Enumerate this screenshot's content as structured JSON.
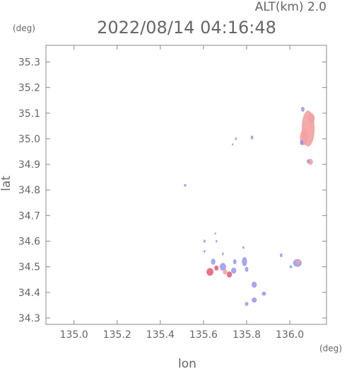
{
  "header": {
    "altitude": "ALT(km) 2.0",
    "timestamp": "2022/08/14 04:16:48"
  },
  "chart_data": {
    "type": "scatter",
    "xlabel": "lon",
    "ylabel": "lat",
    "x_unit": "(deg)",
    "y_unit": "(deg)",
    "xlim": [
      134.87,
      136.17
    ],
    "ylim": [
      34.275,
      35.365
    ],
    "xticks": [
      "135.0",
      "135.2",
      "135.4",
      "135.6",
      "135.8",
      "136.0"
    ],
    "yticks": [
      "34.3",
      "34.4",
      "34.5",
      "34.6",
      "34.7",
      "34.8",
      "34.9",
      "35.0",
      "35.1",
      "35.2",
      "35.3"
    ],
    "grid": false,
    "colors": {
      "positive": "#f4a0a0",
      "positive_strong": "#e8607a",
      "negative": "#8888ee",
      "axis": "#888888"
    },
    "series": [
      {
        "values": [
          {
            "lon": 136.085,
            "lat": 35.04,
            "rx": 0.03,
            "ry": 0.07,
            "c": "positive"
          },
          {
            "lon": 136.065,
            "lat": 35.005,
            "rx": 0.018,
            "ry": 0.03,
            "c": "positive"
          },
          {
            "lon": 136.1,
            "lat": 35.08,
            "rx": 0.015,
            "ry": 0.02,
            "c": "positive"
          },
          {
            "lon": 136.06,
            "lat": 35.115,
            "rx": 0.008,
            "ry": 0.01,
            "c": "negative"
          },
          {
            "lon": 136.055,
            "lat": 34.985,
            "rx": 0.008,
            "ry": 0.01,
            "c": "negative"
          },
          {
            "lon": 136.095,
            "lat": 34.91,
            "rx": 0.012,
            "ry": 0.012,
            "c": "positive"
          },
          {
            "lon": 136.085,
            "lat": 34.912,
            "rx": 0.006,
            "ry": 0.008,
            "c": "negative"
          },
          {
            "lon": 135.825,
            "lat": 35.005,
            "rx": 0.006,
            "ry": 0.008,
            "c": "negative"
          },
          {
            "lon": 135.75,
            "lat": 35.0,
            "rx": 0.004,
            "ry": 0.006,
            "c": "negative"
          },
          {
            "lon": 135.735,
            "lat": 34.978,
            "rx": 0.004,
            "ry": 0.004,
            "c": "negative"
          },
          {
            "lon": 135.515,
            "lat": 34.818,
            "rx": 0.006,
            "ry": 0.005,
            "c": "negative"
          },
          {
            "lon": 135.605,
            "lat": 34.6,
            "rx": 0.005,
            "ry": 0.006,
            "c": "negative"
          },
          {
            "lon": 135.655,
            "lat": 34.63,
            "rx": 0.004,
            "ry": 0.004,
            "c": "negative"
          },
          {
            "lon": 135.66,
            "lat": 34.6,
            "rx": 0.004,
            "ry": 0.005,
            "c": "negative"
          },
          {
            "lon": 135.605,
            "lat": 34.56,
            "rx": 0.004,
            "ry": 0.004,
            "c": "positive_strong"
          },
          {
            "lon": 135.645,
            "lat": 34.52,
            "rx": 0.01,
            "ry": 0.012,
            "c": "negative"
          },
          {
            "lon": 135.63,
            "lat": 34.48,
            "rx": 0.016,
            "ry": 0.015,
            "c": "positive_strong"
          },
          {
            "lon": 135.66,
            "lat": 34.495,
            "rx": 0.01,
            "ry": 0.01,
            "c": "positive_strong"
          },
          {
            "lon": 135.69,
            "lat": 34.5,
            "rx": 0.015,
            "ry": 0.015,
            "c": "negative"
          },
          {
            "lon": 135.7,
            "lat": 34.48,
            "rx": 0.01,
            "ry": 0.01,
            "c": "positive"
          },
          {
            "lon": 135.72,
            "lat": 34.47,
            "rx": 0.012,
            "ry": 0.012,
            "c": "positive_strong"
          },
          {
            "lon": 135.74,
            "lat": 34.485,
            "rx": 0.012,
            "ry": 0.012,
            "c": "negative"
          },
          {
            "lon": 135.745,
            "lat": 34.52,
            "rx": 0.008,
            "ry": 0.01,
            "c": "negative"
          },
          {
            "lon": 135.79,
            "lat": 34.52,
            "rx": 0.012,
            "ry": 0.018,
            "c": "negative"
          },
          {
            "lon": 135.8,
            "lat": 34.49,
            "rx": 0.008,
            "ry": 0.01,
            "c": "negative"
          },
          {
            "lon": 135.835,
            "lat": 34.43,
            "rx": 0.012,
            "ry": 0.012,
            "c": "negative"
          },
          {
            "lon": 135.88,
            "lat": 34.395,
            "rx": 0.01,
            "ry": 0.008,
            "c": "negative"
          },
          {
            "lon": 135.835,
            "lat": 34.37,
            "rx": 0.012,
            "ry": 0.01,
            "c": "negative"
          },
          {
            "lon": 135.8,
            "lat": 34.355,
            "rx": 0.008,
            "ry": 0.008,
            "c": "negative"
          },
          {
            "lon": 135.785,
            "lat": 34.575,
            "rx": 0.005,
            "ry": 0.005,
            "c": "negative"
          },
          {
            "lon": 135.69,
            "lat": 34.55,
            "rx": 0.004,
            "ry": 0.006,
            "c": "negative"
          },
          {
            "lon": 135.96,
            "lat": 34.545,
            "rx": 0.006,
            "ry": 0.008,
            "c": "negative"
          },
          {
            "lon": 136.035,
            "lat": 34.515,
            "rx": 0.02,
            "ry": 0.015,
            "c": "negative"
          },
          {
            "lon": 136.04,
            "lat": 34.518,
            "rx": 0.01,
            "ry": 0.008,
            "c": "positive"
          },
          {
            "lon": 136.005,
            "lat": 34.5,
            "rx": 0.006,
            "ry": 0.006,
            "c": "negative"
          }
        ]
      }
    ]
  }
}
